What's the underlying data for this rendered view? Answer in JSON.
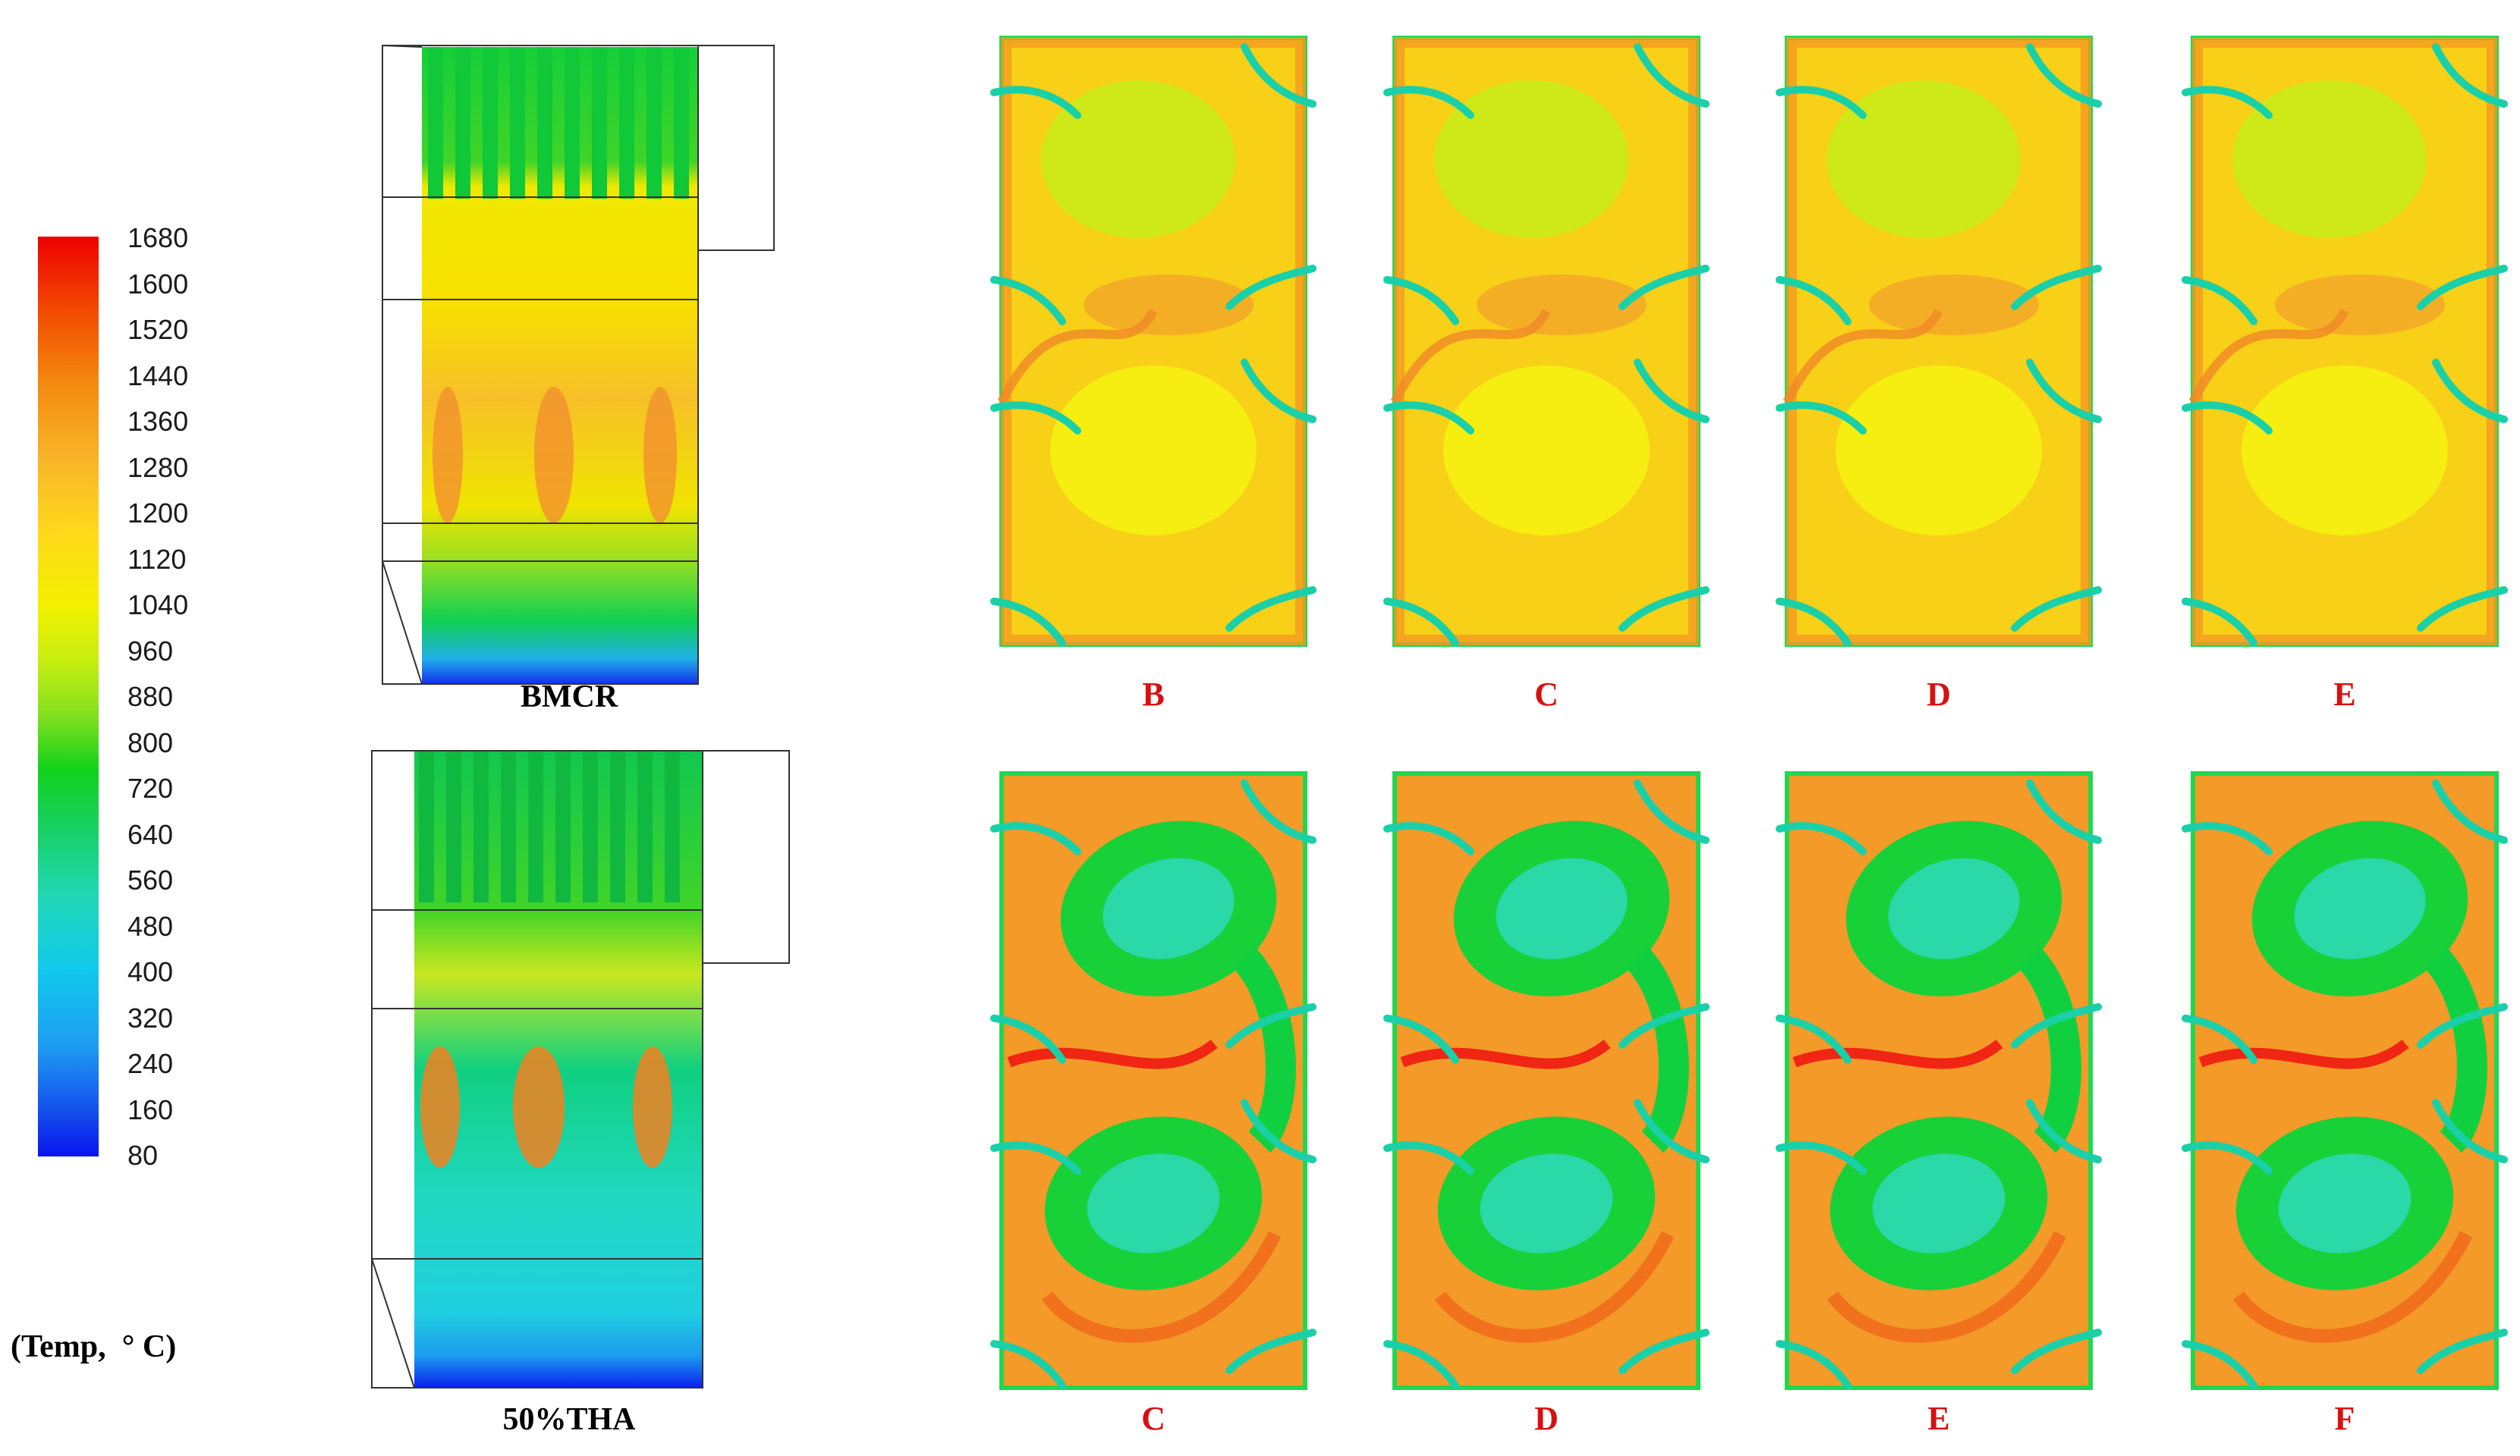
{
  "legend": {
    "unit_label": "(Temp,  ° C)",
    "ticks": [
      "1680",
      "1600",
      "1520",
      "1440",
      "1360",
      "1280",
      "1200",
      "1120",
      "1040",
      "960",
      "880",
      "800",
      "720",
      "640",
      "560",
      "480",
      "400",
      "320",
      "240",
      "160",
      "80"
    ]
  },
  "furnace_views": [
    {
      "caption": "BMCR"
    },
    {
      "caption": "50%THA"
    }
  ],
  "slice_rows": [
    {
      "condition": "BMCR",
      "labels": [
        "B",
        "C",
        "D",
        "E"
      ]
    },
    {
      "condition": "50%THA",
      "labels": [
        "C",
        "D",
        "E",
        "F"
      ]
    }
  ],
  "colors": {
    "hot": "#ee0000",
    "orange": "#f48a10",
    "yellow": "#f4f000",
    "yellow_green": "#c8ee10",
    "green": "#10d21c",
    "cyan": "#20d8b8",
    "blue": "#0a14f0",
    "label_red": "#d81010"
  }
}
